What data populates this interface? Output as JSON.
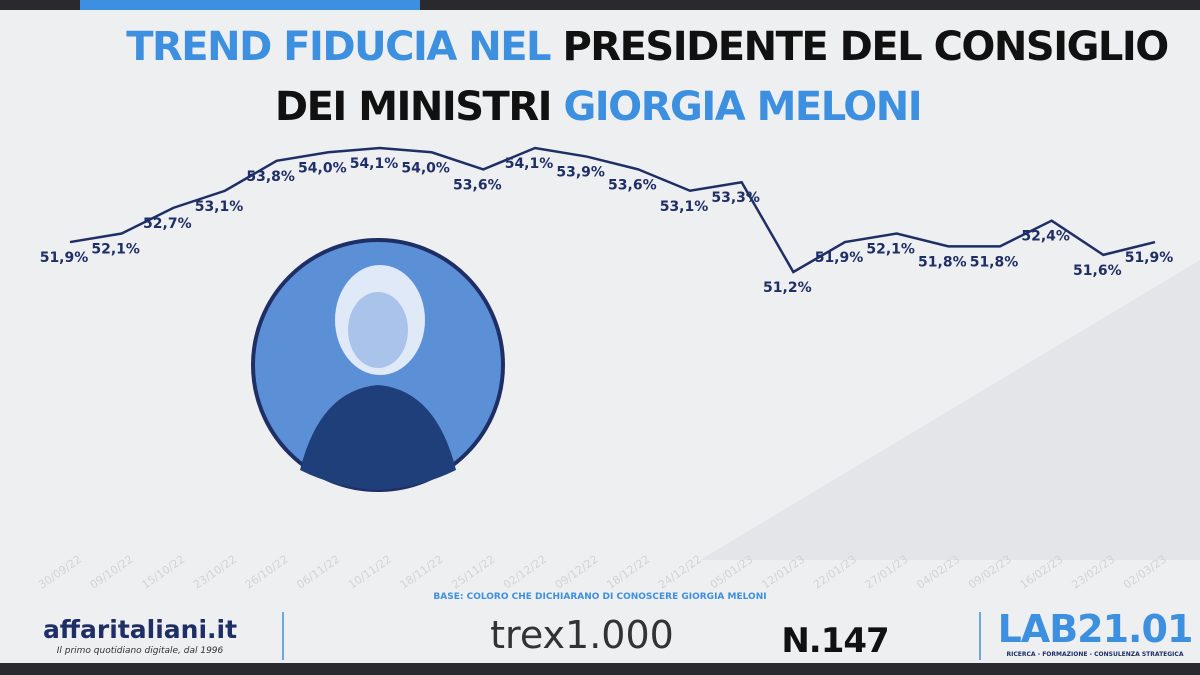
{
  "chart_data": {
    "type": "line",
    "title_parts": [
      "TREND FIDUCIA NEL",
      "PRESIDENTE DEL CONSIGLIO",
      "DEI MINISTRI",
      "GIORGIA MELONI"
    ],
    "categories": [
      "30/09/22",
      "09/10/22",
      "15/10/22",
      "23/10/22",
      "26/10/22",
      "06/11/22",
      "10/11/22",
      "18/11/22",
      "25/11/22",
      "02/12/22",
      "09/12/22",
      "18/12/22",
      "24/12/22",
      "05/01/23",
      "12/01/23",
      "22/01/23",
      "27/01/23",
      "04/02/23",
      "09/02/23",
      "16/02/23",
      "23/02/23",
      "02/03/23"
    ],
    "values": [
      51.9,
      52.1,
      52.7,
      53.1,
      53.8,
      54.0,
      54.1,
      54.0,
      53.6,
      54.1,
      53.9,
      53.6,
      53.1,
      53.3,
      51.2,
      51.9,
      52.1,
      51.8,
      51.8,
      52.4,
      51.6,
      51.9
    ],
    "value_labels": [
      "51,9%",
      "52,1%",
      "52,7%",
      "53,1%",
      "53,8%",
      "54,0%",
      "54,1%",
      "54,0%",
      "53,6%",
      "54,1%",
      "53,9%",
      "53,6%",
      "53,1%",
      "53,3%",
      "51,2%",
      "51,9%",
      "52,1%",
      "51,8%",
      "51,8%",
      "52,4%",
      "51,6%",
      "51,9%"
    ],
    "color": "#1f2f66",
    "note": "BASE: COLORO CHE DICHIARANO DI CONOSCERE GIORGIA MELONI"
  },
  "footer": {
    "brand": "affaritaliani.it",
    "tagline": "Il primo quotidiano digitale, dal 1996",
    "partner": "trex1.000",
    "number": "N.147",
    "lab": "LAB21.01",
    "lab_tagline": "RICERCA - FORMAZIONE - CONSULENZA STRATEGICA"
  }
}
